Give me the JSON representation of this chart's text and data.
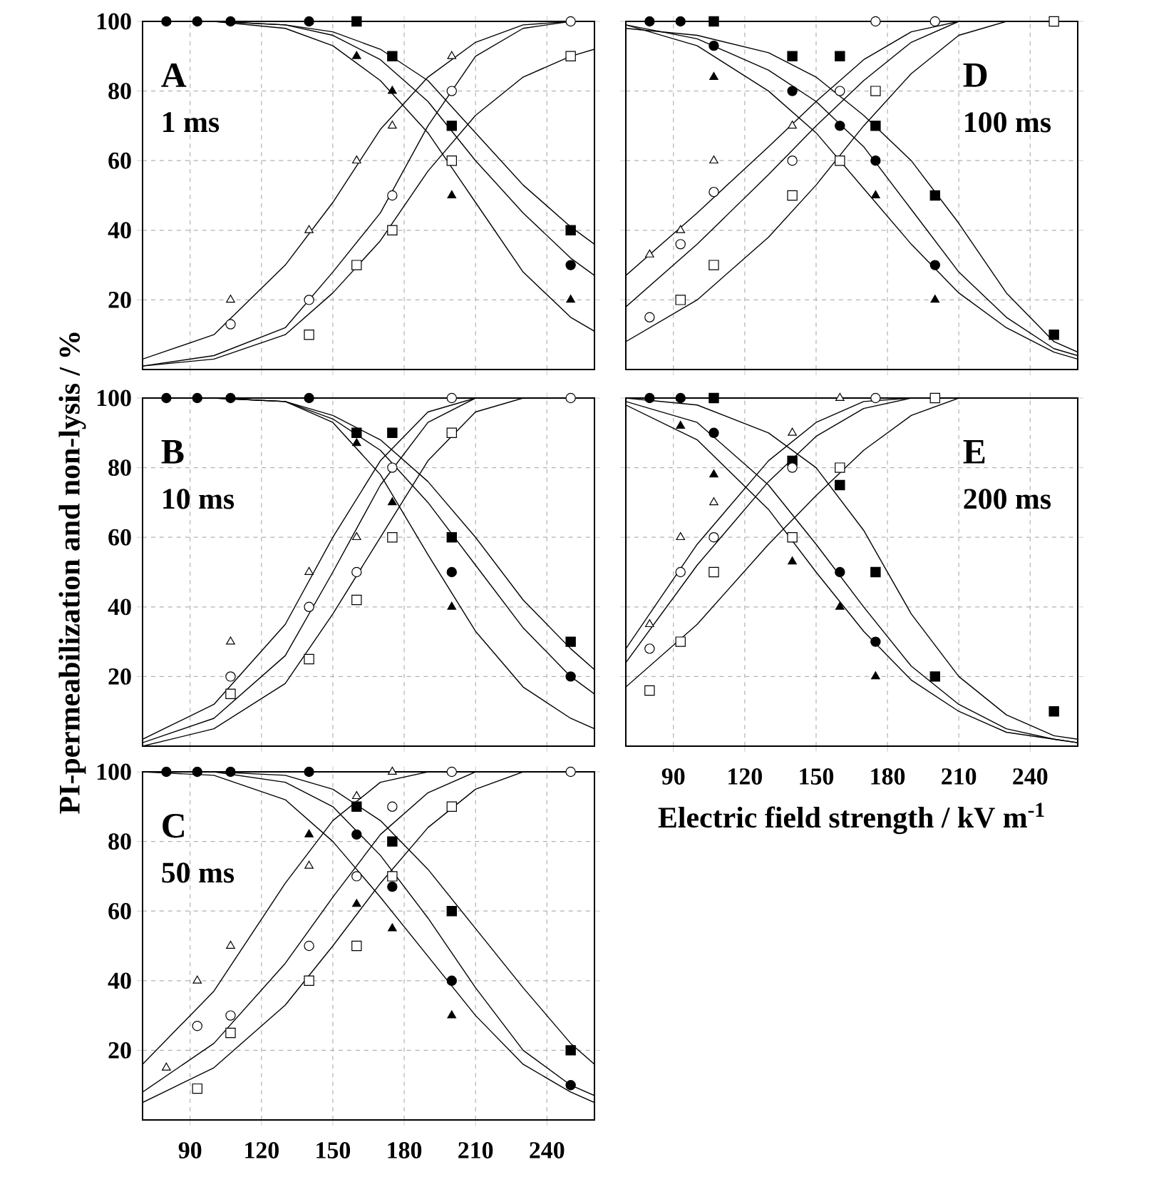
{
  "chart_data": [
    {
      "type": "scatter",
      "title": "A",
      "subtitle": "1 ms",
      "xlim": [
        70,
        260
      ],
      "xticks": [
        90,
        120,
        150,
        180,
        210,
        240
      ],
      "ylim": [
        0,
        100
      ],
      "yticks": [
        20,
        40,
        60,
        80,
        100
      ],
      "grid": true,
      "tick_labels": "y",
      "x": [
        80,
        93,
        107,
        140,
        160,
        175,
        200,
        250
      ],
      "series": [
        {
          "type": "line",
          "color": "#000000",
          "x": [
            70,
            100,
            130,
            150,
            170,
            190,
            210,
            230,
            250,
            260
          ],
          "values": [
            100,
            100,
            99,
            97,
            92,
            83,
            68,
            53,
            41,
            36
          ]
        },
        {
          "type": "line",
          "color": "#000000",
          "x": [
            70,
            100,
            130,
            150,
            170,
            190,
            210,
            230,
            250,
            260
          ],
          "values": [
            100,
            100,
            99,
            96,
            89,
            77,
            60,
            45,
            32,
            27
          ]
        },
        {
          "type": "line",
          "color": "#000000",
          "x": [
            70,
            100,
            130,
            150,
            170,
            190,
            210,
            230,
            250,
            260
          ],
          "values": [
            100,
            100,
            98,
            93,
            83,
            68,
            48,
            28,
            15,
            11
          ]
        },
        {
          "type": "line",
          "color": "#000000",
          "x": [
            70,
            100,
            130,
            150,
            170,
            190,
            210,
            230,
            250,
            260
          ],
          "values": [
            3,
            10,
            30,
            48,
            69,
            84,
            94,
            99,
            100,
            100
          ]
        },
        {
          "type": "line",
          "color": "#000000",
          "x": [
            70,
            100,
            130,
            150,
            170,
            190,
            210,
            230,
            250,
            260
          ],
          "values": [
            1,
            4,
            12,
            28,
            45,
            70,
            90,
            98,
            100,
            100
          ]
        },
        {
          "type": "line",
          "color": "#000000",
          "x": [
            70,
            100,
            130,
            150,
            170,
            190,
            210,
            230,
            250,
            260
          ],
          "values": [
            1,
            3,
            10,
            22,
            37,
            57,
            73,
            84,
            90,
            92
          ]
        },
        {
          "color": "#000000",
          "marker": "square",
          "values": [
            null,
            null,
            null,
            null,
            100,
            90,
            70,
            40
          ]
        },
        {
          "color": "#000000",
          "marker": "circle",
          "values": [
            100,
            100,
            100,
            100,
            null,
            null,
            null,
            30
          ]
        },
        {
          "color": "#000000",
          "marker": "triangle",
          "values": [
            null,
            null,
            null,
            null,
            90,
            80,
            50,
            20
          ]
        },
        {
          "color": "#ffffff",
          "marker": "triangle",
          "values": [
            null,
            null,
            20,
            40,
            60,
            70,
            90,
            null
          ]
        },
        {
          "color": "#ffffff",
          "marker": "circle",
          "values": [
            null,
            null,
            13,
            20,
            null,
            50,
            80,
            100
          ]
        },
        {
          "color": "#ffffff",
          "marker": "square",
          "values": [
            null,
            null,
            null,
            10,
            30,
            40,
            60,
            90
          ]
        }
      ]
    },
    {
      "type": "scatter",
      "title": "D",
      "subtitle": "100 ms",
      "xlim": [
        70,
        260
      ],
      "xticks": [
        90,
        120,
        150,
        180,
        210,
        240
      ],
      "ylim": [
        0,
        100
      ],
      "yticks": [
        20,
        40,
        60,
        80,
        100
      ],
      "grid": true,
      "tick_labels": false,
      "x": [
        80,
        93,
        107,
        140,
        160,
        175,
        200,
        250
      ],
      "series": [
        {
          "type": "line",
          "color": "#000000",
          "x": [
            70,
            100,
            130,
            150,
            170,
            190,
            210,
            230,
            250,
            260
          ],
          "values": [
            98,
            96,
            91,
            84,
            73,
            60,
            42,
            22,
            8,
            5
          ]
        },
        {
          "type": "line",
          "color": "#000000",
          "x": [
            70,
            100,
            130,
            150,
            170,
            190,
            210,
            230,
            250,
            260
          ],
          "values": [
            99,
            95,
            86,
            77,
            64,
            46,
            28,
            15,
            6,
            4
          ]
        },
        {
          "type": "line",
          "color": "#000000",
          "x": [
            70,
            100,
            130,
            150,
            170,
            190,
            210,
            230,
            250,
            260
          ],
          "values": [
            99,
            93,
            80,
            68,
            52,
            36,
            22,
            12,
            5,
            3
          ]
        },
        {
          "type": "line",
          "color": "#000000",
          "x": [
            70,
            100,
            130,
            150,
            170,
            190,
            210,
            230,
            250,
            260
          ],
          "values": [
            27,
            45,
            64,
            77,
            89,
            97,
            100,
            100,
            100,
            100
          ]
        },
        {
          "type": "line",
          "color": "#000000",
          "x": [
            70,
            100,
            130,
            150,
            170,
            190,
            210,
            230,
            250,
            260
          ],
          "values": [
            18,
            36,
            56,
            70,
            83,
            94,
            100,
            100,
            100,
            100
          ]
        },
        {
          "type": "line",
          "color": "#000000",
          "x": [
            70,
            100,
            130,
            150,
            170,
            190,
            210,
            230,
            250,
            260
          ],
          "values": [
            8,
            20,
            38,
            53,
            70,
            85,
            96,
            100,
            100,
            100
          ]
        },
        {
          "color": "#000000",
          "marker": "square",
          "values": [
            null,
            null,
            100,
            90,
            90,
            70,
            50,
            10
          ]
        },
        {
          "color": "#000000",
          "marker": "circle",
          "values": [
            100,
            100,
            93,
            80,
            70,
            60,
            30,
            null
          ]
        },
        {
          "color": "#000000",
          "marker": "triangle",
          "values": [
            null,
            null,
            84,
            null,
            null,
            50,
            20,
            null
          ]
        },
        {
          "color": "#ffffff",
          "marker": "triangle",
          "values": [
            33,
            40,
            60,
            70,
            null,
            null,
            null,
            null
          ]
        },
        {
          "color": "#ffffff",
          "marker": "circle",
          "values": [
            15,
            36,
            51,
            60,
            80,
            100,
            100,
            null
          ]
        },
        {
          "color": "#ffffff",
          "marker": "square",
          "values": [
            null,
            20,
            30,
            50,
            60,
            80,
            null,
            100
          ]
        }
      ]
    },
    {
      "type": "scatter",
      "title": "B",
      "subtitle": "10 ms",
      "ylabel": "PI-permeabilization and non-lysis / %",
      "xlim": [
        70,
        260
      ],
      "xticks": [
        90,
        120,
        150,
        180,
        210,
        240
      ],
      "ylim": [
        0,
        100
      ],
      "yticks": [
        20,
        40,
        60,
        80,
        100
      ],
      "grid": true,
      "tick_labels": "y",
      "x": [
        80,
        93,
        107,
        140,
        160,
        175,
        200,
        250
      ],
      "series": [
        {
          "type": "line",
          "color": "#000000",
          "x": [
            70,
            100,
            130,
            150,
            170,
            190,
            210,
            230,
            250,
            260
          ],
          "values": [
            100,
            100,
            99,
            95,
            88,
            76,
            60,
            42,
            28,
            22
          ]
        },
        {
          "type": "line",
          "color": "#000000",
          "x": [
            70,
            100,
            130,
            150,
            170,
            190,
            210,
            230,
            250,
            260
          ],
          "values": [
            100,
            100,
            99,
            94,
            85,
            70,
            52,
            34,
            20,
            15
          ]
        },
        {
          "type": "line",
          "color": "#000000",
          "x": [
            70,
            100,
            130,
            150,
            170,
            190,
            210,
            230,
            250,
            260
          ],
          "values": [
            100,
            100,
            99,
            93,
            78,
            55,
            33,
            17,
            8,
            5
          ]
        },
        {
          "type": "line",
          "color": "#000000",
          "x": [
            70,
            100,
            130,
            150,
            170,
            190,
            210,
            230,
            250,
            260
          ],
          "values": [
            2,
            12,
            35,
            60,
            82,
            96,
            100,
            100,
            100,
            100
          ]
        },
        {
          "type": "line",
          "color": "#000000",
          "x": [
            70,
            100,
            130,
            150,
            170,
            190,
            210,
            230,
            250,
            260
          ],
          "values": [
            1,
            8,
            26,
            50,
            75,
            93,
            100,
            100,
            100,
            100
          ]
        },
        {
          "type": "line",
          "color": "#000000",
          "x": [
            70,
            100,
            130,
            150,
            170,
            190,
            210,
            230,
            250,
            260
          ],
          "values": [
            0,
            5,
            18,
            38,
            60,
            82,
            96,
            100,
            100,
            100
          ]
        },
        {
          "color": "#000000",
          "marker": "square",
          "values": [
            null,
            null,
            null,
            null,
            90,
            90,
            60,
            30
          ]
        },
        {
          "color": "#000000",
          "marker": "circle",
          "values": [
            100,
            100,
            100,
            100,
            null,
            null,
            50,
            20
          ]
        },
        {
          "color": "#000000",
          "marker": "triangle",
          "values": [
            null,
            null,
            null,
            null,
            87,
            70,
            40,
            null
          ]
        },
        {
          "color": "#ffffff",
          "marker": "triangle",
          "values": [
            null,
            null,
            30,
            50,
            60,
            null,
            null,
            null
          ]
        },
        {
          "color": "#ffffff",
          "marker": "circle",
          "values": [
            null,
            null,
            20,
            40,
            50,
            80,
            100,
            100
          ]
        },
        {
          "color": "#ffffff",
          "marker": "square",
          "values": [
            null,
            null,
            15,
            25,
            42,
            60,
            90,
            null
          ]
        }
      ]
    },
    {
      "type": "scatter",
      "title": "E",
      "subtitle": "200 ms",
      "xlabel": "Electric field strength / kV m$^{-1}$",
      "xlim": [
        70,
        260
      ],
      "xticks": [
        90,
        120,
        150,
        180,
        210,
        240
      ],
      "ylim": [
        0,
        100
      ],
      "yticks": [
        20,
        40,
        60,
        80,
        100
      ],
      "grid": true,
      "tick_labels": "x",
      "x": [
        80,
        93,
        107,
        140,
        160,
        175,
        200,
        250
      ],
      "series": [
        {
          "type": "line",
          "color": "#000000",
          "x": [
            70,
            100,
            130,
            150,
            170,
            190,
            210,
            230,
            250,
            260
          ],
          "values": [
            100,
            98,
            90,
            80,
            62,
            38,
            20,
            9,
            3,
            2
          ]
        },
        {
          "type": "line",
          "color": "#000000",
          "x": [
            70,
            100,
            130,
            150,
            170,
            190,
            210,
            230,
            250,
            260
          ],
          "values": [
            99,
            93,
            75,
            58,
            40,
            23,
            12,
            5,
            2,
            1
          ]
        },
        {
          "type": "line",
          "color": "#000000",
          "x": [
            70,
            100,
            130,
            150,
            170,
            190,
            210,
            230,
            250,
            260
          ],
          "values": [
            98,
            88,
            68,
            50,
            33,
            19,
            10,
            4,
            2,
            1
          ]
        },
        {
          "type": "line",
          "color": "#000000",
          "x": [
            70,
            100,
            130,
            150,
            170,
            190,
            210,
            230,
            250,
            260
          ],
          "values": [
            28,
            58,
            82,
            93,
            99,
            100,
            100,
            100,
            100,
            100
          ]
        },
        {
          "type": "line",
          "color": "#000000",
          "x": [
            70,
            100,
            130,
            150,
            170,
            190,
            210,
            230,
            250,
            260
          ],
          "values": [
            24,
            52,
            76,
            89,
            97,
            100,
            100,
            100,
            100,
            100
          ]
        },
        {
          "type": "line",
          "color": "#000000",
          "x": [
            70,
            100,
            130,
            150,
            170,
            190,
            210,
            230,
            250,
            260
          ],
          "values": [
            17,
            35,
            58,
            72,
            85,
            95,
            100,
            100,
            100,
            100
          ]
        },
        {
          "color": "#000000",
          "marker": "square",
          "values": [
            null,
            null,
            100,
            82,
            75,
            50,
            20,
            10
          ]
        },
        {
          "color": "#000000",
          "marker": "circle",
          "values": [
            100,
            100,
            90,
            null,
            50,
            30,
            null,
            null
          ]
        },
        {
          "color": "#000000",
          "marker": "triangle",
          "values": [
            null,
            92,
            78,
            53,
            40,
            20,
            null,
            null
          ]
        },
        {
          "color": "#ffffff",
          "marker": "triangle",
          "values": [
            35,
            60,
            70,
            90,
            100,
            null,
            null,
            null
          ]
        },
        {
          "color": "#ffffff",
          "marker": "circle",
          "values": [
            28,
            50,
            60,
            80,
            null,
            100,
            null,
            null
          ]
        },
        {
          "color": "#ffffff",
          "marker": "square",
          "values": [
            16,
            30,
            50,
            60,
            80,
            null,
            100,
            null
          ]
        }
      ]
    },
    {
      "type": "scatter",
      "title": "C",
      "subtitle": "50 ms",
      "xlim": [
        70,
        260
      ],
      "xticks": [
        90,
        120,
        150,
        180,
        210,
        240
      ],
      "ylim": [
        0,
        100
      ],
      "yticks": [
        20,
        40,
        60,
        80,
        100
      ],
      "grid": true,
      "x": [
        80,
        93,
        107,
        140,
        160,
        175,
        200,
        250
      ],
      "series": [
        {
          "type": "line",
          "color": "#000000",
          "x": [
            70,
            100,
            130,
            150,
            170,
            190,
            210,
            230,
            250,
            260
          ],
          "values": [
            100,
            100,
            99,
            95,
            86,
            72,
            55,
            38,
            22,
            16
          ]
        },
        {
          "type": "line",
          "color": "#000000",
          "x": [
            70,
            100,
            130,
            150,
            170,
            190,
            210,
            230,
            250,
            260
          ],
          "values": [
            100,
            100,
            97,
            90,
            76,
            58,
            38,
            20,
            10,
            7
          ]
        },
        {
          "type": "line",
          "color": "#000000",
          "x": [
            70,
            100,
            130,
            150,
            170,
            190,
            210,
            230,
            250,
            260
          ],
          "values": [
            100,
            99,
            92,
            80,
            64,
            47,
            30,
            16,
            8,
            5
          ]
        },
        {
          "type": "line",
          "color": "#000000",
          "x": [
            70,
            100,
            130,
            150,
            170,
            190,
            210,
            230,
            250,
            260
          ],
          "values": [
            16,
            37,
            68,
            86,
            97,
            100,
            100,
            100,
            100,
            100
          ]
        },
        {
          "type": "line",
          "color": "#000000",
          "x": [
            70,
            100,
            130,
            150,
            170,
            190,
            210,
            230,
            250,
            260
          ],
          "values": [
            8,
            22,
            45,
            64,
            82,
            94,
            100,
            100,
            100,
            100
          ]
        },
        {
          "type": "line",
          "color": "#000000",
          "x": [
            70,
            100,
            130,
            150,
            170,
            190,
            210,
            230,
            250,
            260
          ],
          "values": [
            5,
            15,
            33,
            50,
            68,
            84,
            95,
            100,
            100,
            100
          ]
        },
        {
          "color": "#000000",
          "marker": "square",
          "values": [
            null,
            null,
            null,
            null,
            90,
            80,
            60,
            20
          ]
        },
        {
          "color": "#000000",
          "marker": "circle",
          "values": [
            100,
            100,
            100,
            100,
            82,
            67,
            40,
            10
          ]
        },
        {
          "color": "#000000",
          "marker": "triangle",
          "values": [
            null,
            null,
            null,
            82,
            62,
            55,
            30,
            null
          ]
        },
        {
          "color": "#ffffff",
          "marker": "triangle",
          "values": [
            15,
            40,
            50,
            73,
            93,
            100,
            null,
            null
          ]
        },
        {
          "color": "#ffffff",
          "marker": "circle",
          "values": [
            null,
            27,
            30,
            50,
            70,
            90,
            100,
            100
          ]
        },
        {
          "color": "#ffffff",
          "marker": "square",
          "values": [
            null,
            9,
            25,
            40,
            50,
            70,
            90,
            null
          ]
        }
      ]
    }
  ]
}
